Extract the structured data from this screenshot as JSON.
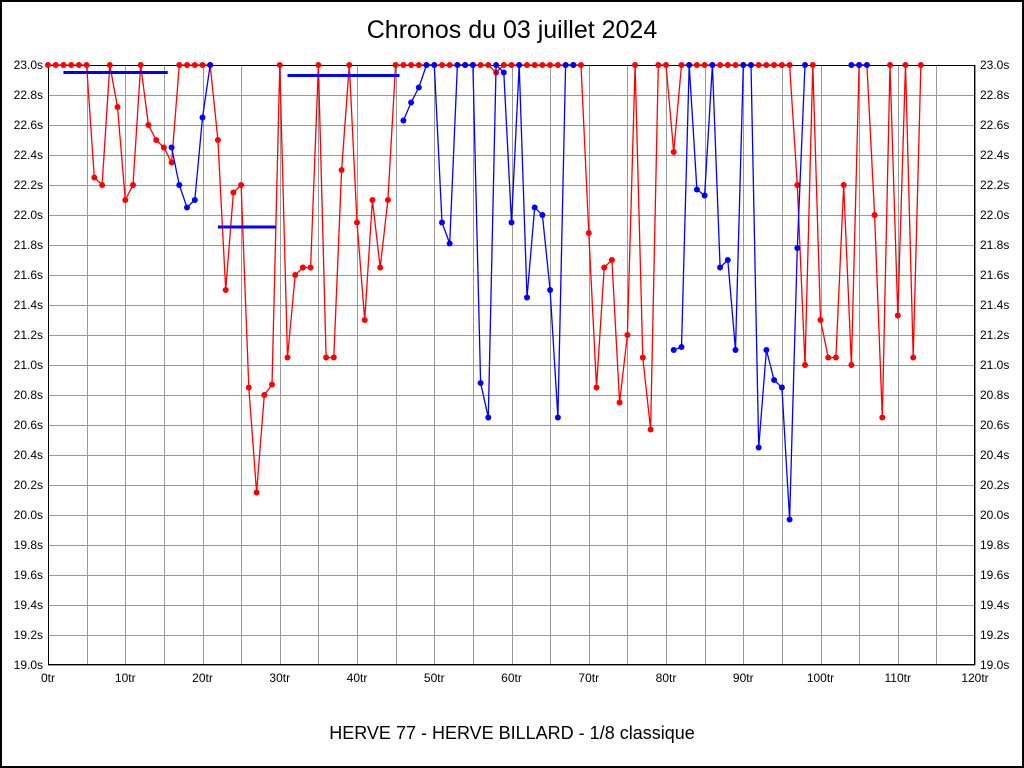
{
  "chart_data": {
    "type": "line",
    "title": "Chronos du 03 juillet 2024",
    "footer": "HERVE 77 - HERVE BILLARD - 1/8 classique",
    "grid_color": "#999999",
    "frame_color": "#000000",
    "x_axis": {
      "min": 0,
      "max": 120,
      "grid_step": 5,
      "label_step": 10,
      "unit": "tr",
      "tick_labels": [
        "0tr",
        "10tr",
        "20tr",
        "30tr",
        "40tr",
        "50tr",
        "60tr",
        "70tr",
        "80tr",
        "90tr",
        "100tr",
        "110tr",
        "120tr"
      ]
    },
    "y_axis": {
      "min": 19.0,
      "max": 23.0,
      "grid_step": 0.2,
      "unit": "s",
      "tick_labels": [
        "23.0s",
        "22.8s",
        "22.6s",
        "22.4s",
        "22.2s",
        "22.0s",
        "21.8s",
        "21.6s",
        "21.4s",
        "21.2s",
        "21.0s",
        "20.8s",
        "20.6s",
        "20.4s",
        "20.2s",
        "20.0s",
        "19.8s",
        "19.6s",
        "19.4s",
        "19.2s",
        "19.0s"
      ]
    },
    "series": [
      {
        "name": "red-series",
        "color": "#ff0000",
        "points": [
          [
            0,
            23
          ],
          [
            1,
            23
          ],
          [
            2,
            23
          ],
          [
            3,
            23
          ],
          [
            4,
            23
          ],
          [
            5,
            23
          ],
          [
            6,
            22.25
          ],
          [
            7,
            22.2
          ],
          [
            8,
            23
          ],
          [
            9,
            22.72
          ],
          [
            10,
            22.1
          ],
          [
            11,
            22.2
          ],
          [
            12,
            23
          ],
          [
            13,
            22.6
          ],
          [
            14,
            22.5
          ],
          [
            15,
            22.45
          ],
          [
            16,
            22.35
          ],
          [
            17,
            23
          ],
          [
            18,
            23
          ],
          [
            19,
            23
          ],
          [
            20,
            23
          ],
          [
            21,
            23
          ],
          [
            22,
            22.5
          ],
          [
            23,
            21.5
          ],
          [
            24,
            22.15
          ],
          [
            25,
            22.2
          ],
          [
            26,
            20.85
          ],
          [
            27,
            20.15
          ],
          [
            28,
            20.8
          ],
          [
            29,
            20.87
          ],
          [
            30,
            23
          ],
          [
            31,
            21.05
          ],
          [
            32,
            21.6
          ],
          [
            33,
            21.65
          ],
          [
            34,
            21.65
          ],
          [
            35,
            23
          ],
          [
            36,
            21.05
          ],
          [
            37,
            21.05
          ],
          [
            38,
            22.3
          ],
          [
            39,
            23
          ],
          [
            40,
            21.95
          ],
          [
            41,
            21.3
          ],
          [
            42,
            22.1
          ],
          [
            43,
            21.65
          ],
          [
            44,
            22.1
          ],
          [
            45,
            23
          ],
          [
            46,
            23
          ],
          [
            47,
            23
          ],
          [
            48,
            23
          ],
          [
            49,
            23
          ],
          [
            50,
            23
          ],
          [
            51,
            23
          ],
          [
            52,
            23
          ],
          [
            53,
            23
          ],
          [
            54,
            23
          ],
          [
            55,
            23
          ],
          [
            56,
            23
          ],
          [
            57,
            23
          ],
          [
            58,
            22.95
          ],
          [
            59,
            23
          ],
          [
            60,
            23
          ],
          [
            61,
            23
          ],
          [
            62,
            23
          ],
          [
            63,
            23
          ],
          [
            64,
            23
          ],
          [
            65,
            23
          ],
          [
            66,
            23
          ],
          [
            67,
            23
          ],
          [
            68,
            23
          ],
          [
            69,
            23
          ],
          [
            70,
            21.88
          ],
          [
            71,
            20.85
          ],
          [
            72,
            21.65
          ],
          [
            73,
            21.7
          ],
          [
            74,
            20.75
          ],
          [
            75,
            21.2
          ],
          [
            76,
            23
          ],
          [
            77,
            21.05
          ],
          [
            78,
            20.57
          ],
          [
            79,
            23
          ],
          [
            80,
            23
          ],
          [
            81,
            22.42
          ],
          [
            82,
            23
          ],
          [
            83,
            23
          ],
          [
            84,
            23
          ],
          [
            85,
            23
          ],
          [
            86,
            23
          ],
          [
            87,
            23
          ],
          [
            88,
            23
          ],
          [
            89,
            23
          ],
          [
            90,
            23
          ],
          [
            91,
            23
          ],
          [
            92,
            23
          ],
          [
            93,
            23
          ],
          [
            94,
            23
          ],
          [
            95,
            23
          ],
          [
            96,
            23
          ],
          [
            97,
            22.2
          ],
          [
            98,
            21.0
          ],
          [
            99,
            23
          ],
          [
            100,
            21.3
          ],
          [
            101,
            21.05
          ],
          [
            102,
            21.05
          ],
          [
            103,
            22.2
          ],
          [
            104,
            21.0
          ],
          [
            105,
            23
          ],
          [
            106,
            23
          ],
          [
            107,
            22.0
          ],
          [
            108,
            20.65
          ],
          [
            109,
            23
          ],
          [
            110,
            21.33
          ],
          [
            111,
            23
          ],
          [
            112,
            21.05
          ],
          [
            113,
            23
          ]
        ]
      },
      {
        "name": "blue-series",
        "color": "#0000ff",
        "points": [
          [
            16,
            22.45
          ],
          [
            17,
            22.2
          ],
          [
            18,
            22.05
          ],
          [
            19,
            22.1
          ],
          [
            20,
            22.65
          ],
          [
            21,
            23
          ],
          [
            46,
            22.63
          ],
          [
            47,
            22.75
          ],
          [
            48,
            22.85
          ],
          [
            49,
            23
          ],
          [
            50,
            23
          ],
          [
            51,
            21.95
          ],
          [
            52,
            21.81
          ],
          [
            53,
            23
          ],
          [
            54,
            23
          ],
          [
            55,
            23
          ],
          [
            56,
            20.88
          ],
          [
            57,
            20.65
          ],
          [
            58,
            23
          ],
          [
            59,
            22.95
          ],
          [
            60,
            21.95
          ],
          [
            61,
            23
          ],
          [
            62,
            21.45
          ],
          [
            63,
            22.05
          ],
          [
            64,
            22.0
          ],
          [
            65,
            21.5
          ],
          [
            66,
            20.65
          ],
          [
            67,
            23
          ],
          [
            68,
            23
          ],
          [
            81,
            21.1
          ],
          [
            82,
            21.12
          ],
          [
            83,
            23
          ],
          [
            84,
            22.17
          ],
          [
            85,
            22.13
          ],
          [
            86,
            23
          ],
          [
            87,
            21.65
          ],
          [
            88,
            21.7
          ],
          [
            89,
            21.1
          ],
          [
            90,
            23
          ],
          [
            91,
            23
          ],
          [
            92,
            20.45
          ],
          [
            93,
            21.1
          ],
          [
            94,
            20.9
          ],
          [
            95,
            20.85
          ],
          [
            96,
            19.97
          ],
          [
            97,
            21.78
          ],
          [
            98,
            23
          ],
          [
            104,
            23
          ],
          [
            105,
            23
          ],
          [
            106,
            23
          ]
        ],
        "segments": [
          [
            2,
            15.5,
            22.95
          ],
          [
            22,
            29.5,
            21.92
          ],
          [
            31,
            45.5,
            22.93
          ]
        ]
      }
    ]
  }
}
